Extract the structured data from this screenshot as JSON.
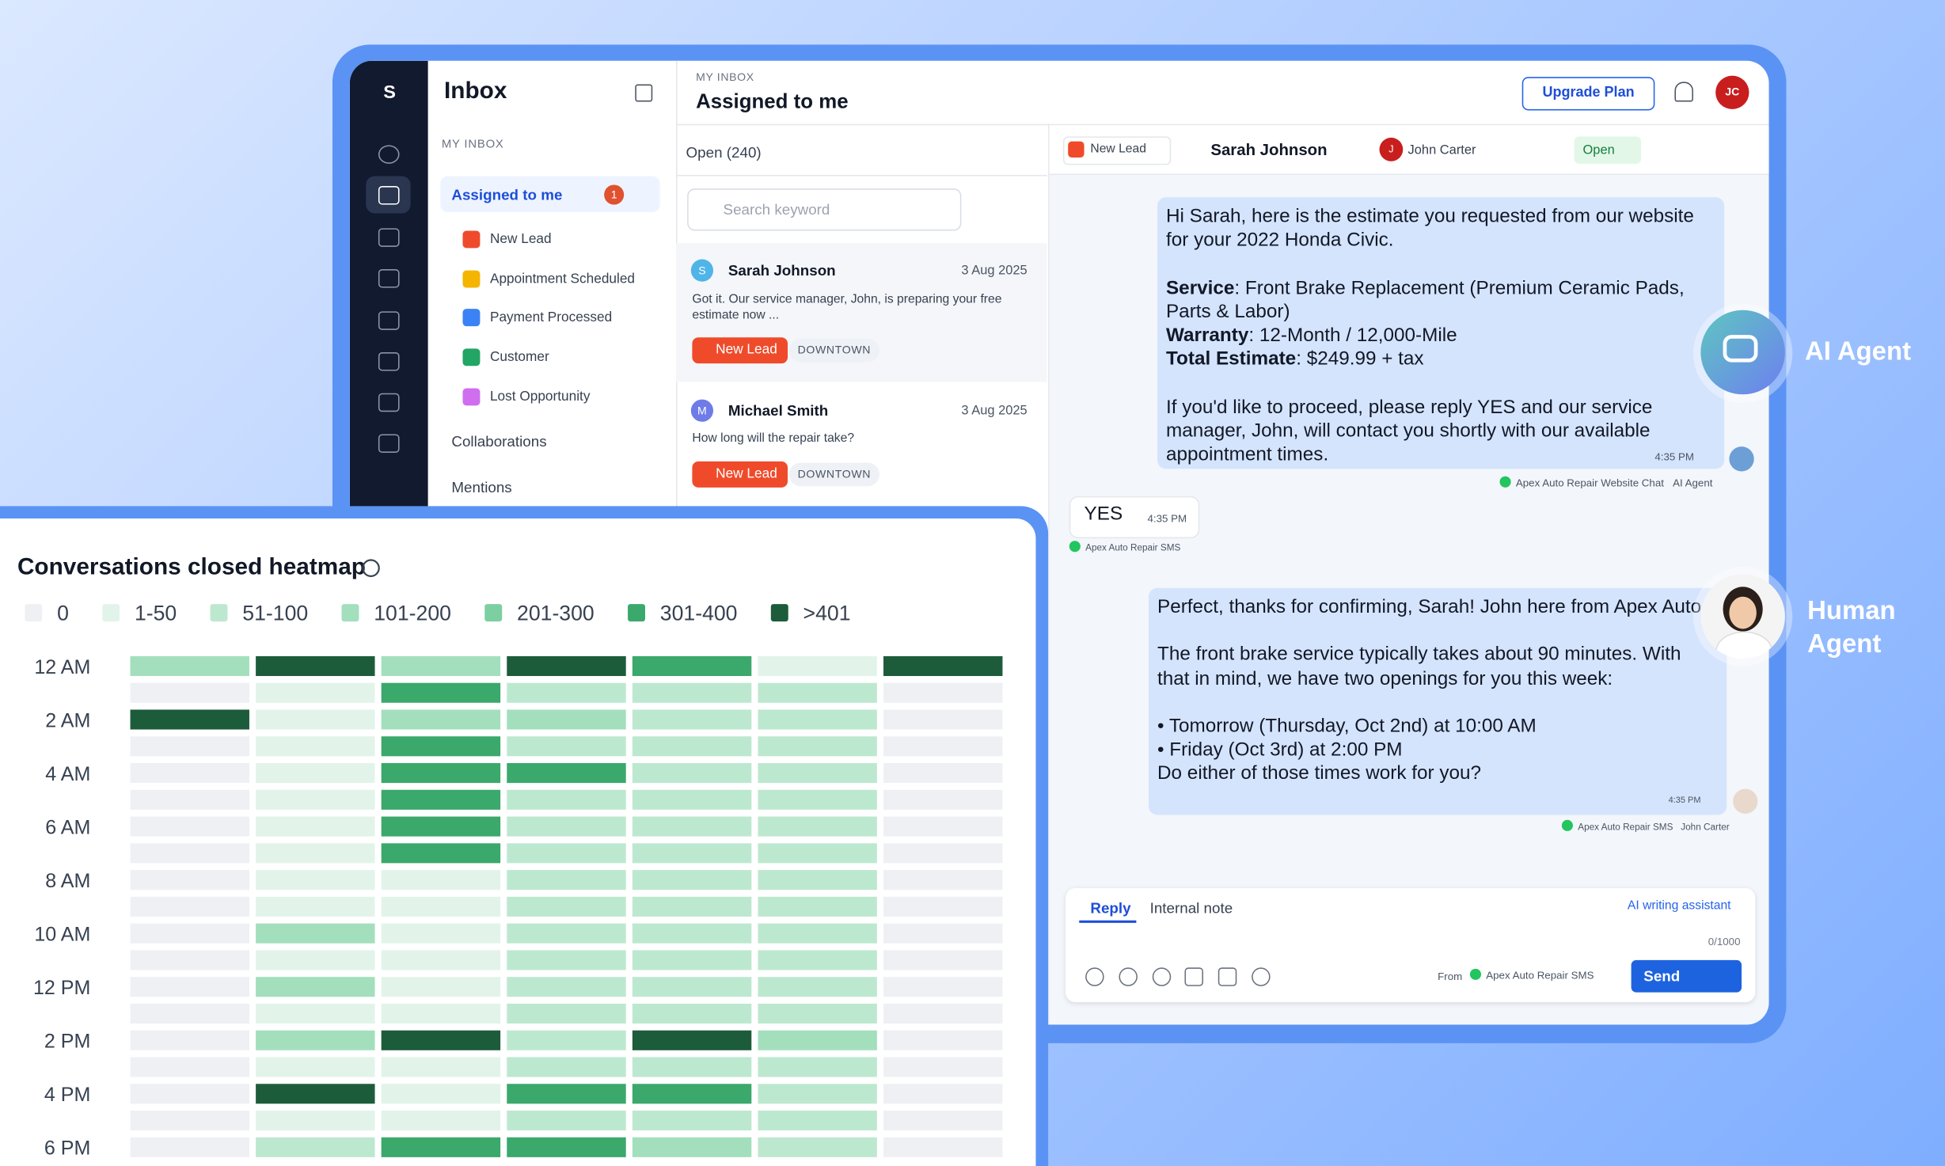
{
  "sidebar": {
    "logo": "S"
  },
  "inbox": {
    "title": "Inbox",
    "section": "MY INBOX",
    "assigned": "Assigned to me",
    "assigned_count": 1,
    "tags": [
      "New Lead",
      "Appointment Scheduled",
      "Payment Processed",
      "Customer",
      "Lost Opportunity"
    ],
    "collaborations": "Collaborations",
    "mentions": "Mentions"
  },
  "header": {
    "breadcrumb": "MY INBOX",
    "title": "Assigned to me",
    "upgrade": "Upgrade Plan",
    "avatar": "JC"
  },
  "list": {
    "filter": "Open (240)",
    "search": "Search keyword",
    "conversations": [
      {
        "avatar": "S",
        "name": "Sarah Johnson",
        "date": "3 Aug 2025",
        "preview": "Got it. Our service manager, John, is preparing your free estimate now ...",
        "tag": "New Lead",
        "location": "DOWNTOWN"
      },
      {
        "avatar": "M",
        "name": "Michael Smith",
        "date": "3 Aug 2025",
        "preview": "How long will the repair take?",
        "tag": "New Lead",
        "location": "DOWNTOWN"
      }
    ]
  },
  "chat": {
    "tag": "New Lead",
    "contact": "Sarah Johnson",
    "assignee_avatar": "J",
    "assignee": "John Carter",
    "status": "Open",
    "ai_message": {
      "intro": "Hi Sarah, here is the estimate you requested from our website for your 2022 Honda Civic.",
      "details": [
        {
          "label": "Service",
          "text": ": Front Brake Replacement (Premium Ceramic Pads, Parts & Labor)"
        },
        {
          "label": "Warranty",
          "text": ": 12-Month / 12,000-Mile"
        },
        {
          "label": "Total Estimate",
          "text": ": $249.99 + tax"
        }
      ],
      "outro": "If you'd like to proceed, please reply YES and our service manager, John, will contact you shortly with our available appointment times.",
      "time": "4:35 PM",
      "source": "Apex Auto Repair Website Chat",
      "sender": "AI Agent"
    },
    "reply": {
      "text": "YES",
      "time": "4:35 PM",
      "source": "Apex Auto Repair SMS"
    },
    "human_message": {
      "paragraphs": [
        "Perfect, thanks for confirming, Sarah! John here from Apex Auto.",
        "The front brake service typically takes about 90 minutes. With that in mind, we have two openings for you this week:"
      ],
      "bullets": [
        "• Tomorrow (Thursday, Oct 2nd) at 10:00 AM",
        "• Friday (Oct 3rd) at 2:00 PM"
      ],
      "closing": "Do either of those times work for you?",
      "time": "4:35 PM",
      "source": "Apex Auto Repair SMS",
      "sender": "John Carter"
    }
  },
  "composer": {
    "tabs": [
      "Reply",
      "Internal note"
    ],
    "assistant": "AI writing assistant",
    "counter": "0/1000",
    "from": "From",
    "channel": "Apex Auto Repair SMS",
    "send": "Send"
  },
  "badges": {
    "ai": "AI Agent",
    "human": "Human Agent"
  },
  "heatmap": {
    "title": "Conversations closed heatmap",
    "legend": [
      {
        "label": "0",
        "color": "#eef0f4"
      },
      {
        "label": "1-50",
        "color": "#e2f4e9"
      },
      {
        "label": "51-100",
        "color": "#bde8d0"
      },
      {
        "label": "101-200",
        "color": "#a3dfbd"
      },
      {
        "label": "201-300",
        "color": "#7ccfa1"
      },
      {
        "label": "301-400",
        "color": "#3ba86c"
      },
      {
        "label": ">401",
        "color": "#1d5c3b"
      }
    ],
    "rows": [
      "12 AM",
      null,
      "2 AM",
      null,
      "4 AM",
      null,
      "6 AM",
      null,
      "8 AM",
      null,
      "10 AM",
      null,
      "12 PM",
      null,
      "2 PM",
      null,
      "4 PM",
      null,
      "6 PM"
    ],
    "levels": [
      [
        3,
        6,
        3,
        6,
        5,
        1,
        6
      ],
      [
        0,
        1,
        5,
        2,
        2,
        2,
        0
      ],
      [
        6,
        1,
        3,
        3,
        2,
        2,
        0
      ],
      [
        0,
        1,
        5,
        2,
        2,
        2,
        0
      ],
      [
        0,
        1,
        5,
        5,
        2,
        2,
        0
      ],
      [
        0,
        1,
        5,
        2,
        2,
        2,
        0
      ],
      [
        0,
        1,
        5,
        2,
        2,
        2,
        0
      ],
      [
        0,
        1,
        5,
        2,
        2,
        2,
        0
      ],
      [
        0,
        1,
        1,
        2,
        2,
        2,
        0
      ],
      [
        0,
        1,
        1,
        2,
        2,
        2,
        0
      ],
      [
        0,
        3,
        1,
        2,
        2,
        2,
        0
      ],
      [
        0,
        1,
        1,
        2,
        2,
        2,
        0
      ],
      [
        0,
        3,
        1,
        2,
        2,
        2,
        0
      ],
      [
        0,
        1,
        1,
        2,
        2,
        2,
        0
      ],
      [
        0,
        3,
        6,
        2,
        6,
        3,
        0
      ],
      [
        0,
        1,
        1,
        2,
        2,
        2,
        0
      ],
      [
        0,
        6,
        1,
        5,
        5,
        2,
        0
      ],
      [
        0,
        1,
        1,
        2,
        2,
        2,
        0
      ],
      [
        0,
        2,
        5,
        5,
        3,
        2,
        0
      ]
    ]
  }
}
